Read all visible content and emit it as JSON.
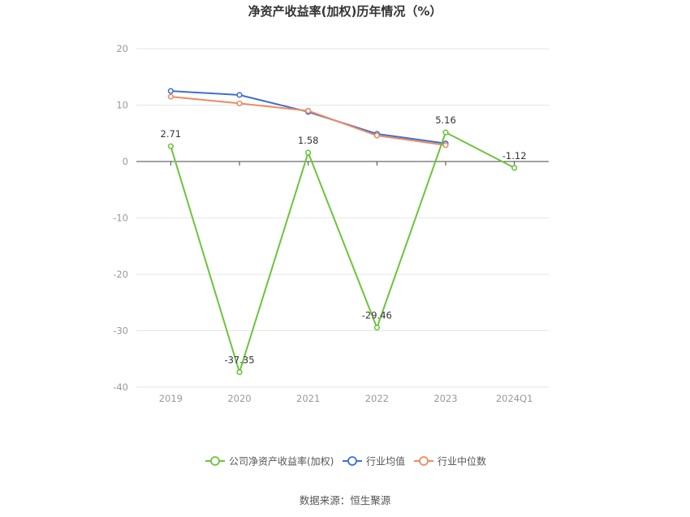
{
  "chart_data": {
    "type": "line",
    "title": "净资产收益率(加权)历年情况（%）",
    "categories": [
      "2019",
      "2020",
      "2021",
      "2022",
      "2023",
      "2024Q1"
    ],
    "ylim": [
      -40,
      20
    ],
    "yticks": [
      20,
      10,
      0,
      -10,
      -20,
      -30,
      -40
    ],
    "grid": true,
    "legend_position": "bottom",
    "series": [
      {
        "name": "公司净资产收益率(加权)",
        "color": "#6cc43c",
        "values": [
          2.71,
          -37.35,
          1.58,
          -29.46,
          5.16,
          -1.12
        ],
        "labels": [
          "2.71",
          "-37.35",
          "1.58",
          "-29.46",
          "5.16",
          "-1.12"
        ]
      },
      {
        "name": "行业均值",
        "color": "#3d6fd1",
        "values": [
          12.5,
          11.8,
          8.8,
          4.9,
          3.2,
          null
        ]
      },
      {
        "name": "行业中位数",
        "color": "#f08a5d",
        "values": [
          11.5,
          10.3,
          9.0,
          4.6,
          2.9,
          null
        ]
      }
    ]
  },
  "source": "数据来源：恒生聚源"
}
